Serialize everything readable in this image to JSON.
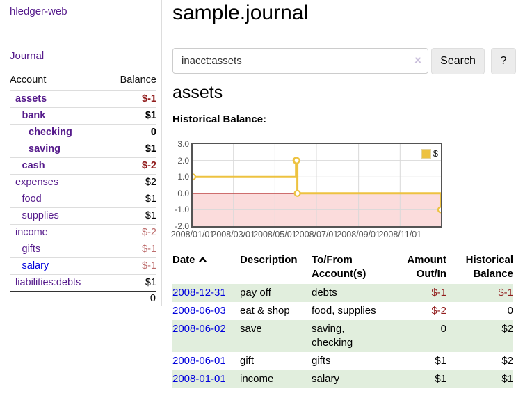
{
  "app": {
    "brand": "hledger-web",
    "nav_journal": "Journal"
  },
  "sidebar": {
    "header": {
      "account": "Account",
      "balance": "Balance"
    },
    "rows": [
      {
        "name": "assets",
        "level": 0,
        "bold": true,
        "balance": "$-1"
      },
      {
        "name": "bank",
        "level": 1,
        "bold": true,
        "balance": "$1"
      },
      {
        "name": "checking",
        "level": 2,
        "bold": true,
        "balance": "0"
      },
      {
        "name": "saving",
        "level": 2,
        "bold": true,
        "balance": "$1"
      },
      {
        "name": "cash",
        "level": 1,
        "bold": true,
        "balance": "$-2"
      },
      {
        "name": "expenses",
        "level": 0,
        "bold": false,
        "balance": "$2"
      },
      {
        "name": "food",
        "level": 1,
        "bold": false,
        "balance": "$1"
      },
      {
        "name": "supplies",
        "level": 1,
        "bold": false,
        "balance": "$1"
      },
      {
        "name": "income",
        "level": 0,
        "bold": false,
        "balance": "$-2"
      },
      {
        "name": "gifts",
        "level": 1,
        "bold": false,
        "balance": "$-1"
      },
      {
        "name": "salary",
        "level": 1,
        "bold": false,
        "balance": "$-1",
        "blue": true
      },
      {
        "name": "liabilities:debts",
        "level": 0,
        "bold": false,
        "balance": "$1"
      }
    ],
    "total": "0"
  },
  "header": {
    "title": "sample.journal"
  },
  "search": {
    "value": "inacct:assets",
    "clear_label": "×",
    "button_label": "Search",
    "help_label": "?"
  },
  "account_page": {
    "title": "assets",
    "chart_label": "Historical Balance:"
  },
  "chart_data": {
    "type": "line",
    "title": "Historical Balance:",
    "series": [
      {
        "name": "$",
        "color": "#edc240",
        "steps": true,
        "points": [
          [
            "2008-01-01",
            1
          ],
          [
            "2008-06-01",
            2
          ],
          [
            "2008-06-02",
            2
          ],
          [
            "2008-06-03",
            0
          ],
          [
            "2008-12-31",
            -1
          ]
        ]
      }
    ],
    "xlim": [
      "2008-01-01",
      "2008-12-31"
    ],
    "ylim": [
      -2,
      3
    ],
    "yticks": [
      3,
      2,
      1,
      0,
      -1,
      -2
    ],
    "xticks": [
      {
        "date": "2008-01-01",
        "label": "2008/01/01"
      },
      {
        "date": "2008-03-01",
        "label": "2008/03/01"
      },
      {
        "date": "2008-05-01",
        "label": "2008/05/01"
      },
      {
        "date": "2008-07-01",
        "label": "2008/07/01"
      },
      {
        "date": "2008-09-01",
        "label": "2008/09/01"
      },
      {
        "date": "2008-11-01",
        "label": "2008/11/01"
      }
    ],
    "legend": {
      "label": "$",
      "position": "top-right"
    },
    "grid": true,
    "grid_color": "#d9d9d9",
    "negative_region_color": "#fbdcdc",
    "zero_line_color": "#a00000"
  },
  "register": {
    "columns": [
      "Date",
      "Description",
      "To/From\nAccount(s)",
      "Amount\nOut/In",
      "Historical\nBalance"
    ],
    "rows": [
      {
        "date": "2008-12-31",
        "description": "pay off",
        "accounts": "debts",
        "amount": "$-1",
        "balance": "$-1"
      },
      {
        "date": "2008-06-03",
        "description": "eat & shop",
        "accounts": "food, supplies",
        "amount": "$-2",
        "balance": "0"
      },
      {
        "date": "2008-06-02",
        "description": "save",
        "accounts": "saving,\nchecking",
        "amount": "0",
        "balance": "$2"
      },
      {
        "date": "2008-06-01",
        "description": "gift",
        "accounts": "gifts",
        "amount": "$1",
        "balance": "$2"
      },
      {
        "date": "2008-01-01",
        "description": "income",
        "accounts": "salary",
        "amount": "$1",
        "balance": "$1"
      }
    ]
  }
}
